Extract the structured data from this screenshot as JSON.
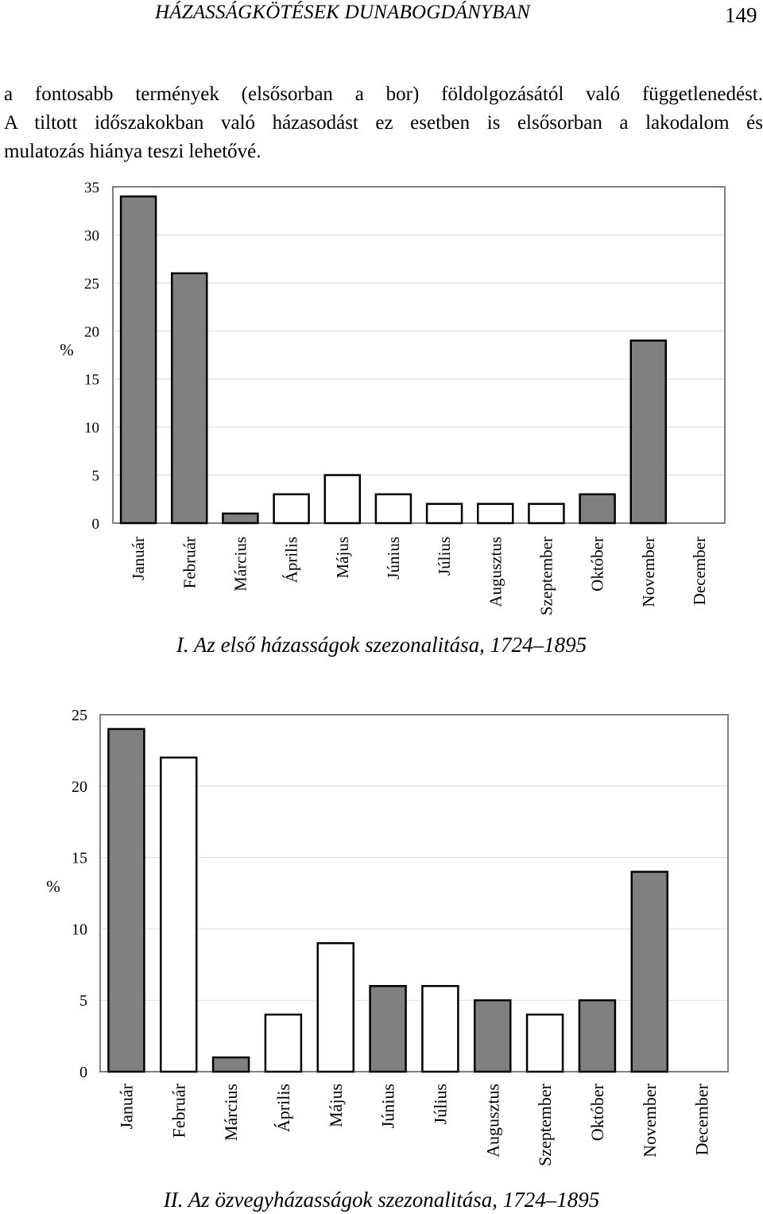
{
  "header": {
    "running_title": "HÁZASSÁGKÖTÉSEK DUNABOGDÁNYBAN",
    "page_number": "149"
  },
  "paragraph": {
    "lines": [
      "a fontosabb termények (elsősorban a bor) földolgozásától való függetlenedést.",
      "A tiltott időszakokban való házasodást ez esetben is elsősorban a lakodalom és",
      "mulatozás hiánya teszi lehetővé."
    ]
  },
  "colors": {
    "grey_bar": "#808080",
    "white_bar": "#ffffff",
    "gridline": "#d9d9d9",
    "frame": "#808080"
  },
  "chart_data": [
    {
      "type": "bar",
      "title": "I. Az első házasságok szezonalitása, 1724–1895",
      "xlabel": "",
      "ylabel": "%",
      "ylim": [
        0,
        35
      ],
      "yticks": [
        0,
        5,
        10,
        15,
        20,
        25,
        30,
        35
      ],
      "grid": true,
      "categories": [
        "Január",
        "Február",
        "Március",
        "Április",
        "Május",
        "Június",
        "Július",
        "Augusztus",
        "Szeptember",
        "Október",
        "November",
        "December"
      ],
      "values": [
        34,
        26,
        1,
        3,
        5,
        3,
        2,
        2,
        2,
        3,
        19,
        0
      ],
      "fills": [
        "grey",
        "grey",
        "grey",
        "white",
        "white",
        "white",
        "white",
        "white",
        "white",
        "grey",
        "grey",
        "grey"
      ]
    },
    {
      "type": "bar",
      "title": "II. Az özvegyházasságok szezonalitása, 1724–1895",
      "xlabel": "",
      "ylabel": "%",
      "ylim": [
        0,
        25
      ],
      "yticks": [
        0,
        5,
        10,
        15,
        20,
        25
      ],
      "grid": true,
      "categories": [
        "Január",
        "Február",
        "Március",
        "Április",
        "Május",
        "Június",
        "Július",
        "Augusztus",
        "Szeptember",
        "Október",
        "November",
        "December"
      ],
      "values": [
        24,
        22,
        1,
        4,
        9,
        6,
        6,
        5,
        4,
        5,
        14,
        0
      ],
      "fills": [
        "grey",
        "white",
        "grey",
        "white",
        "white",
        "grey",
        "white",
        "grey",
        "white",
        "grey",
        "grey",
        "grey"
      ]
    }
  ]
}
